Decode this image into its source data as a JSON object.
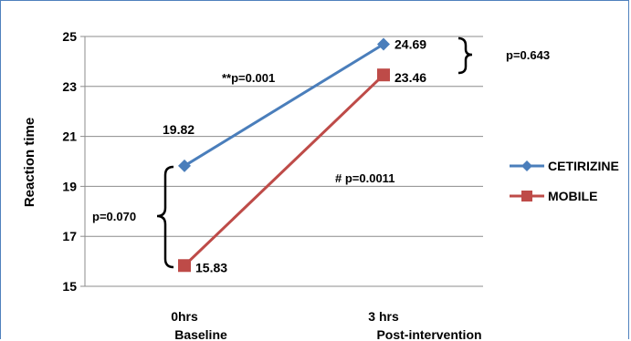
{
  "chart_data": {
    "type": "line",
    "ylabel": "Reaction time",
    "ylim": [
      15,
      25
    ],
    "yticks": [
      15,
      17,
      19,
      21,
      23,
      25
    ],
    "categories": [
      "0hrs",
      "3 hrs"
    ],
    "category_sublabels": [
      "Baseline",
      "Post-intervention"
    ],
    "grid": true,
    "legend_position": "right",
    "series": [
      {
        "name": "CETIRIZINE",
        "values": [
          19.82,
          24.69
        ],
        "labels": [
          "19.82",
          "24.69"
        ],
        "color": "#4a7ebb",
        "marker": "diamond"
      },
      {
        "name": "MOBILE",
        "values": [
          15.83,
          23.46
        ],
        "labels": [
          "15.83",
          "23.46"
        ],
        "color": "#be4b48",
        "marker": "square"
      }
    ],
    "annotations": {
      "top_right": "p=0.643",
      "cetirizine_change": "**p=0.001",
      "mobile_change": "# p=0.0011",
      "baseline": "p=0.070"
    }
  }
}
